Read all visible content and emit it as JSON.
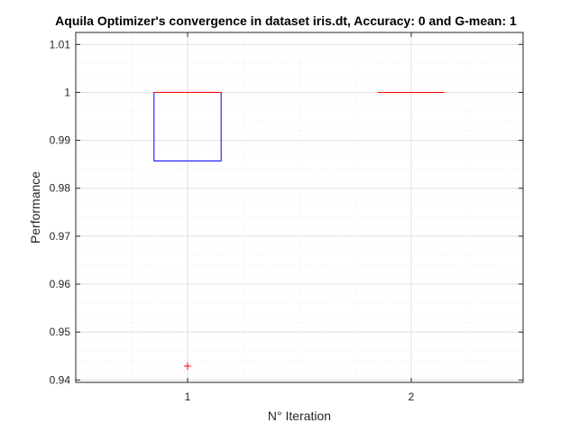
{
  "chart_data": {
    "type": "box",
    "title": "Aquila Optimizer's convergence in dataset iris.dt, Accuracy: 0 and G-mean: 1",
    "xlabel": "N° Iteration",
    "ylabel": "Performance",
    "xlim": [
      0.5,
      2.5
    ],
    "ylim": [
      0.9395,
      1.0125
    ],
    "categories": [
      "1",
      "2"
    ],
    "yticks": [
      0.94,
      0.95,
      0.96,
      0.97,
      0.98,
      0.99,
      1,
      1.01
    ],
    "ytick_labels": [
      "0.94",
      "0.95",
      "0.96",
      "0.97",
      "0.98",
      "0.99",
      "1",
      "1.01"
    ],
    "grid": true,
    "minor_grid": true,
    "boxes": [
      {
        "category": "1",
        "q1": 0.9857,
        "median": 1.0,
        "q3": 1.0,
        "whisker_low": 0.9857,
        "whisker_high": 1.0,
        "outliers": [
          0.9429
        ]
      },
      {
        "category": "2",
        "q1": 1.0,
        "median": 1.0,
        "q3": 1.0,
        "whisker_low": 1.0,
        "whisker_high": 1.0,
        "outliers": []
      }
    ],
    "colors": {
      "box": "#0000ff",
      "median": "#ff0000",
      "outlier": "#ff0000",
      "axis": "#262626",
      "grid": "#dfdfdf",
      "minor_grid": "#efefef"
    }
  }
}
